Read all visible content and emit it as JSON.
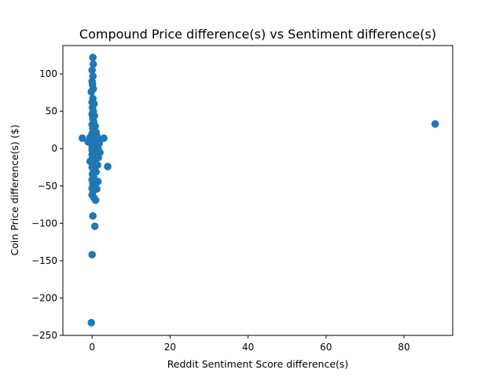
{
  "chart_data": {
    "type": "scatter",
    "title": "Compound Price difference(s) vs Sentiment difference(s)",
    "xlabel": "Reddit Sentiment Score difference(s)",
    "ylabel": "Coin Price difference(s) ($)",
    "xlim": [
      -7.5,
      92.5
    ],
    "ylim": [
      -250,
      138
    ],
    "xticks": [
      0,
      20,
      40,
      60,
      80
    ],
    "xtick_labels": [
      "0",
      "20",
      "40",
      "60",
      "80"
    ],
    "yticks": [
      100,
      50,
      0,
      -50,
      -100,
      -150,
      -200,
      -250
    ],
    "ytick_labels": [
      "100",
      "50",
      "0",
      "−50",
      "−100",
      "−150",
      "−200",
      "−250"
    ],
    "grid": false,
    "marker_color": "#1f77b4",
    "points": [
      {
        "x": 88.0,
        "y": 33
      },
      {
        "x": -2.5,
        "y": 14
      },
      {
        "x": 3.0,
        "y": 14
      },
      {
        "x": 4.0,
        "y": -24
      },
      {
        "x": 0.2,
        "y": 122
      },
      {
        "x": 0.3,
        "y": 113
      },
      {
        "x": 0.0,
        "y": 105
      },
      {
        "x": 0.2,
        "y": 97
      },
      {
        "x": 0.0,
        "y": 90
      },
      {
        "x": 0.1,
        "y": 86
      },
      {
        "x": 0.3,
        "y": 80
      },
      {
        "x": -0.2,
        "y": 76
      },
      {
        "x": 0.2,
        "y": 67
      },
      {
        "x": 0.0,
        "y": 62
      },
      {
        "x": 0.5,
        "y": 60
      },
      {
        "x": 0.1,
        "y": 55
      },
      {
        "x": 0.3,
        "y": 50
      },
      {
        "x": 0.0,
        "y": 46
      },
      {
        "x": 0.6,
        "y": 44
      },
      {
        "x": 0.2,
        "y": 40
      },
      {
        "x": 0.4,
        "y": 36
      },
      {
        "x": 0.0,
        "y": 32
      },
      {
        "x": 0.8,
        "y": 30
      },
      {
        "x": 0.2,
        "y": 27
      },
      {
        "x": 0.5,
        "y": 24
      },
      {
        "x": 1.0,
        "y": 22
      },
      {
        "x": 0.0,
        "y": 20
      },
      {
        "x": 0.3,
        "y": 18
      },
      {
        "x": 1.2,
        "y": 17
      },
      {
        "x": -0.5,
        "y": 15
      },
      {
        "x": 0.5,
        "y": 14
      },
      {
        "x": 1.5,
        "y": 13
      },
      {
        "x": 0.0,
        "y": 12
      },
      {
        "x": 0.8,
        "y": 10
      },
      {
        "x": -1.0,
        "y": 9
      },
      {
        "x": 0.3,
        "y": 8
      },
      {
        "x": 1.8,
        "y": 7
      },
      {
        "x": 0.0,
        "y": 6
      },
      {
        "x": 1.0,
        "y": 5
      },
      {
        "x": 0.5,
        "y": 4
      },
      {
        "x": 0.0,
        "y": 2
      },
      {
        "x": 1.5,
        "y": 1
      },
      {
        "x": 0.2,
        "y": 0
      },
      {
        "x": 0.7,
        "y": -1
      },
      {
        "x": 0.0,
        "y": -2
      },
      {
        "x": 1.2,
        "y": -3
      },
      {
        "x": 2.0,
        "y": -5
      },
      {
        "x": 0.4,
        "y": -6
      },
      {
        "x": 0.0,
        "y": -8
      },
      {
        "x": 1.0,
        "y": -9
      },
      {
        "x": 0.3,
        "y": -11
      },
      {
        "x": 1.6,
        "y": -12
      },
      {
        "x": 0.0,
        "y": -14
      },
      {
        "x": -0.5,
        "y": -17
      },
      {
        "x": 0.8,
        "y": -18
      },
      {
        "x": 0.2,
        "y": -20
      },
      {
        "x": 1.4,
        "y": -22
      },
      {
        "x": 0.0,
        "y": -25
      },
      {
        "x": 0.6,
        "y": -28
      },
      {
        "x": 1.0,
        "y": -31
      },
      {
        "x": 0.1,
        "y": -34
      },
      {
        "x": 0.4,
        "y": -38
      },
      {
        "x": 0.0,
        "y": -42
      },
      {
        "x": 1.5,
        "y": -44
      },
      {
        "x": 0.2,
        "y": -47
      },
      {
        "x": 0.8,
        "y": -50
      },
      {
        "x": 0.0,
        "y": -53
      },
      {
        "x": 1.2,
        "y": -54
      },
      {
        "x": 0.3,
        "y": -57
      },
      {
        "x": 0.0,
        "y": -62
      },
      {
        "x": 0.5,
        "y": -66
      },
      {
        "x": 0.9,
        "y": -69
      },
      {
        "x": 0.2,
        "y": -90
      },
      {
        "x": 0.7,
        "y": -104
      },
      {
        "x": 0.0,
        "y": -142
      },
      {
        "x": -0.2,
        "y": -233
      }
    ]
  }
}
